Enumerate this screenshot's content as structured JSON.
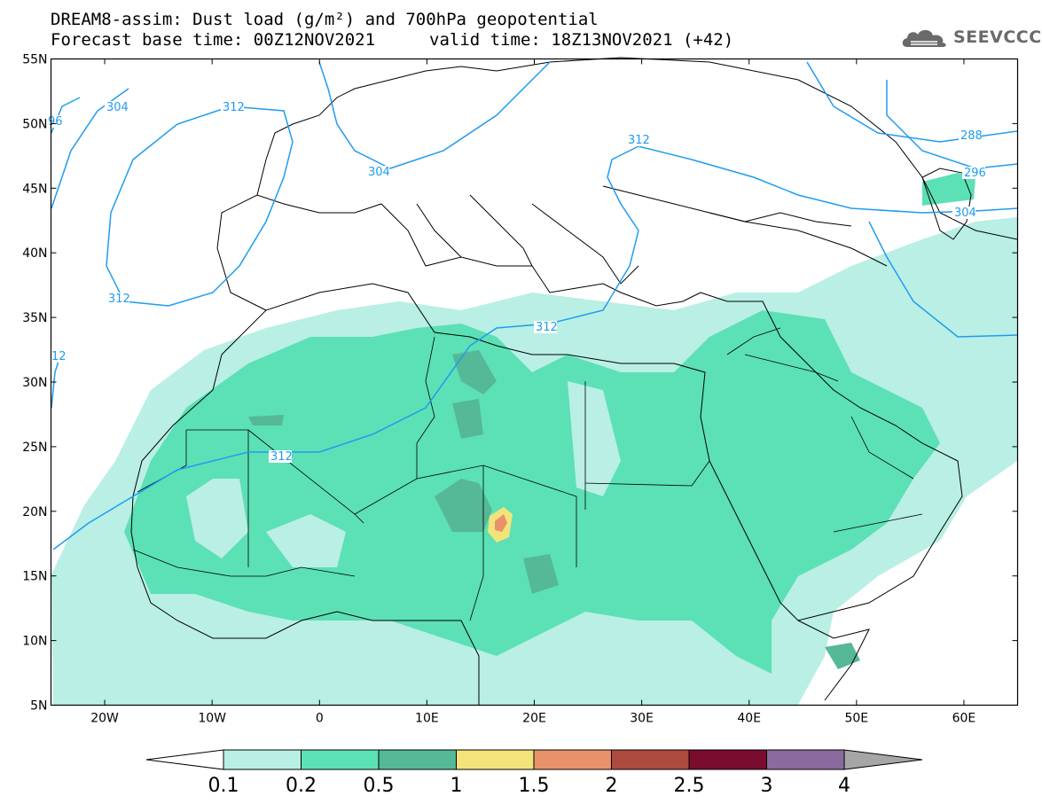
{
  "title": {
    "line1": "DREAM8-assim: Dust load (g/m²) and 700hPa geopotential",
    "line2_base": "Forecast base time: 00Z12NOV2021",
    "line2_valid": "valid time: 18Z13NOV2021 (+42)"
  },
  "logo": {
    "text": "SEEVCCC",
    "icon": "cloud-logo-icon"
  },
  "map": {
    "lon_range": [
      -25,
      65
    ],
    "lat_range": [
      5,
      55
    ],
    "lat_labels": [
      {
        "lat": 55,
        "text": "55N"
      },
      {
        "lat": 50,
        "text": "50N"
      },
      {
        "lat": 45,
        "text": "45N"
      },
      {
        "lat": 40,
        "text": "40N"
      },
      {
        "lat": 35,
        "text": "35N"
      },
      {
        "lat": 30,
        "text": "30N"
      },
      {
        "lat": 25,
        "text": "25N"
      },
      {
        "lat": 20,
        "text": "20N"
      },
      {
        "lat": 15,
        "text": "15N"
      },
      {
        "lat": 10,
        "text": "10N"
      },
      {
        "lat": 5,
        "text": "5N"
      }
    ],
    "lon_labels": [
      {
        "lon": -20,
        "text": "20W"
      },
      {
        "lon": -10,
        "text": "10W"
      },
      {
        "lon": 0,
        "text": "0"
      },
      {
        "lon": 10,
        "text": "10E"
      },
      {
        "lon": 20,
        "text": "20E"
      },
      {
        "lon": 30,
        "text": "30E"
      },
      {
        "lon": 40,
        "text": "40E"
      },
      {
        "lon": 50,
        "text": "50E"
      },
      {
        "lon": 60,
        "text": "60E"
      }
    ],
    "contour_labels": [
      {
        "text": "96"
      },
      {
        "text": "304"
      },
      {
        "text": "312"
      },
      {
        "text": "304"
      },
      {
        "text": "312"
      },
      {
        "text": "288"
      },
      {
        "text": "296"
      },
      {
        "text": "304"
      },
      {
        "text": "312"
      },
      {
        "text": "12"
      },
      {
        "text": "312"
      },
      {
        "text": "312"
      }
    ],
    "contour_color": "#1f9cf0"
  },
  "colorbar": {
    "levels": [
      "0.1",
      "0.2",
      "0.5",
      "1",
      "1.5",
      "2",
      "2.5",
      "3",
      "4"
    ],
    "colors": [
      "#b9efe4",
      "#5ce0b5",
      "#55b897",
      "#f2e47a",
      "#e8926a",
      "#ad4c3e",
      "#7a0c2e",
      "#8b6a9e"
    ],
    "below_color": "#ffffff",
    "above_color": "#a6a6a6"
  }
}
